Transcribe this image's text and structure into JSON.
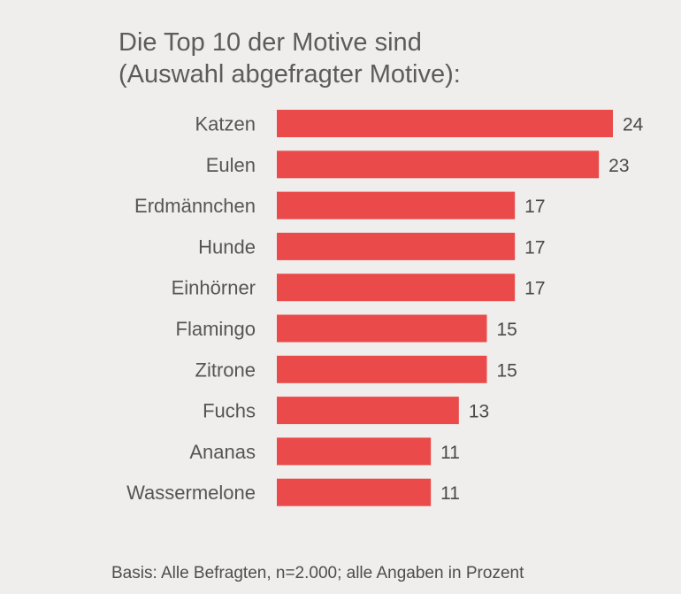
{
  "chart_data": {
    "type": "bar",
    "orientation": "horizontal",
    "title_lines": [
      "Die Top 10 der Motive sind",
      "(Auswahl abgefragter Motive):"
    ],
    "categories": [
      "Katzen",
      "Eulen",
      "Erdmännchen",
      "Hunde",
      "Einhörner",
      "Flamingo",
      "Zitrone",
      "Fuchs",
      "Ananas",
      "Wassermelone"
    ],
    "values": [
      24,
      23,
      17,
      17,
      17,
      15,
      15,
      13,
      11,
      11
    ],
    "xlim": [
      0,
      24
    ],
    "grid": false,
    "legend": "none",
    "data_labels": true,
    "bar_color": "#ea4b4a",
    "footnote": "Basis: Alle Befragten, n=2.000; alle Angaben in Prozent"
  }
}
